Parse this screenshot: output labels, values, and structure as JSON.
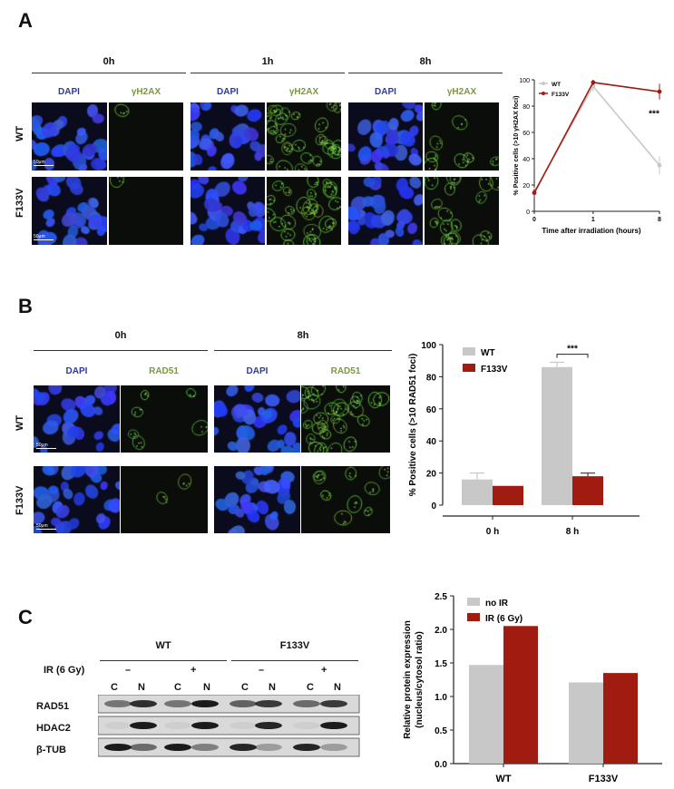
{
  "panels": {
    "a": {
      "letter": "A",
      "timepoints": [
        "0h",
        "1h",
        "8h"
      ],
      "channels": [
        "DAPI",
        "γH2AX"
      ],
      "rows": [
        "WT",
        "F133V"
      ],
      "scale_bar": "50μm"
    },
    "b": {
      "letter": "B",
      "timepoints": [
        "0h",
        "8h"
      ],
      "channels": [
        "DAPI",
        "RAD51"
      ],
      "rows": [
        "WT",
        "F133V"
      ],
      "scale_bar": "50μm"
    },
    "c": {
      "letter": "C",
      "groups": [
        "WT",
        "F133V"
      ],
      "ir_label": "IR (6 Gy)",
      "ir_signs": [
        "–",
        "+",
        "–",
        "+"
      ],
      "fractions": [
        "C",
        "N",
        "C",
        "N",
        "C",
        "N",
        "C",
        "N"
      ],
      "proteins": [
        "RAD51",
        "HDAC2",
        "β-TUB"
      ]
    }
  },
  "colors": {
    "wt": "#c8c8c8",
    "f133v": "#a01c10",
    "dapi_text": "#2e3a9e",
    "green_text": "#7a9a3a"
  },
  "chart_data": [
    {
      "type": "line",
      "panel": "A",
      "xlabel": "Time after irradiation (hours)",
      "ylabel": "% Positive cells (>10 γH2AX foci)",
      "x": [
        0,
        1,
        8
      ],
      "xticks": [
        "0",
        "1",
        "8"
      ],
      "ylim": [
        0,
        100
      ],
      "yticks": [
        0,
        20,
        40,
        60,
        80,
        100
      ],
      "series": [
        {
          "name": "WT",
          "values": [
            15,
            95,
            35
          ],
          "errors": [
            3,
            4,
            7
          ]
        },
        {
          "name": "F133V",
          "values": [
            14,
            98,
            91
          ],
          "errors": [
            3,
            2,
            6
          ]
        }
      ],
      "annotation": "***",
      "legend": "top-left"
    },
    {
      "type": "bar",
      "panel": "B",
      "ylabel": "% Positive cells (>10 RAD51 foci)",
      "categories": [
        "0 h",
        "8 h"
      ],
      "ylim": [
        0,
        100
      ],
      "yticks": [
        0,
        20,
        40,
        60,
        80,
        100
      ],
      "series": [
        {
          "name": "WT",
          "values": [
            16,
            86
          ],
          "errors": [
            4,
            3
          ]
        },
        {
          "name": "F133V",
          "values": [
            12,
            18
          ],
          "errors": [
            0,
            2
          ]
        }
      ],
      "annotation": "***",
      "legend": "top-left"
    },
    {
      "type": "bar",
      "panel": "C",
      "ylabel": "Relative protein expression (nucleus/cytosol ratio)",
      "ylabel_lines": [
        "Relative protein expression",
        "(nucleus/cytosol ratio)"
      ],
      "categories": [
        "WT",
        "F133V"
      ],
      "ylim": [
        0,
        2.5
      ],
      "yticks": [
        "0.0",
        "0.5",
        "1.0",
        "1.5",
        "2.0",
        "2.5"
      ],
      "series": [
        {
          "name": "no IR",
          "values": [
            1.47,
            1.21
          ]
        },
        {
          "name": "IR (6 Gy)",
          "values": [
            2.05,
            1.35
          ]
        }
      ],
      "legend": "top-left"
    }
  ]
}
